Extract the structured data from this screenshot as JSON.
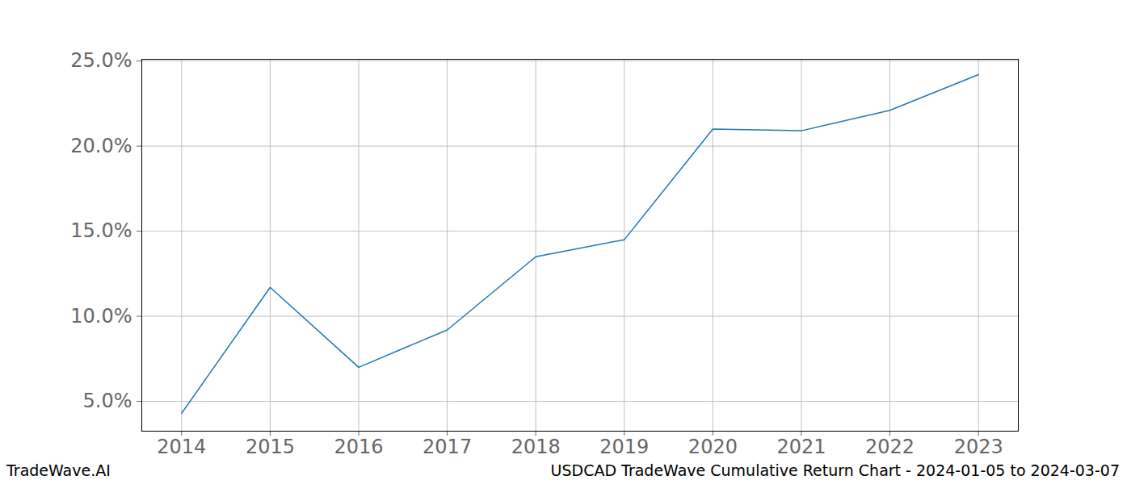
{
  "chart_data": {
    "type": "line",
    "x": [
      2014,
      2015,
      2016,
      2017,
      2018,
      2019,
      2020,
      2021,
      2022,
      2023
    ],
    "values": [
      4.3,
      11.7,
      7.0,
      9.2,
      13.5,
      14.5,
      21.0,
      20.9,
      22.1,
      24.2
    ],
    "color": "#1f77b4",
    "xlim": [
      2013.55,
      2023.45
    ],
    "xticks": [
      2014,
      2015,
      2016,
      2017,
      2018,
      2019,
      2020,
      2021,
      2022,
      2023
    ],
    "ylim": [
      3.25,
      25.1
    ],
    "yticks": [
      {
        "value": 5,
        "label": "5.0%"
      },
      {
        "value": 10,
        "label": "10.0%"
      },
      {
        "value": 15,
        "label": "15.0%"
      },
      {
        "value": 20,
        "label": "20.0%"
      },
      {
        "value": 25,
        "label": "25.0%"
      }
    ],
    "grid": true,
    "annotations": [
      "TradeWave.AI",
      "USDCAD TradeWave Cumulative Return Chart - 2024-01-05 to 2024-03-07"
    ]
  }
}
